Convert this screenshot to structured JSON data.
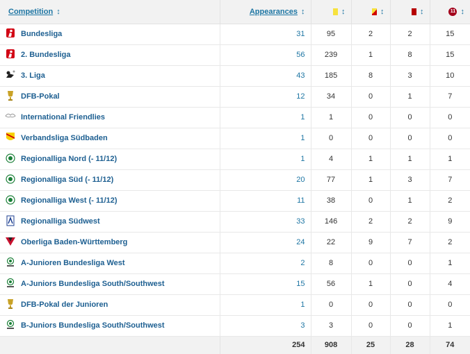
{
  "header": {
    "competition": "Competition",
    "appearances": "Appearances",
    "sort_glyph": "↕"
  },
  "icons": {
    "yellow_card": "yellow-card-icon",
    "yellow_red_card": "yellow-red-card-icon",
    "red_card": "red-card-icon",
    "starting_eleven": "starting-eleven-icon",
    "starting_eleven_text": "11"
  },
  "colors": {
    "link": "#1d75a3",
    "yellow": "#f7e23e",
    "red": "#b60000"
  },
  "rows": [
    {
      "name": "Bundesliga",
      "logo": "bundesliga-logo",
      "apps": "31",
      "c1": "95",
      "c2": "2",
      "c3": "2",
      "c4": "15"
    },
    {
      "name": "2. Bundesliga",
      "logo": "2-bundesliga-logo",
      "apps": "56",
      "c1": "239",
      "c2": "1",
      "c3": "8",
      "c4": "15"
    },
    {
      "name": "3. Liga",
      "logo": "3-liga-logo",
      "apps": "43",
      "c1": "185",
      "c2": "8",
      "c3": "3",
      "c4": "10"
    },
    {
      "name": "DFB-Pokal",
      "logo": "dfb-pokal-logo",
      "apps": "12",
      "c1": "34",
      "c2": "0",
      "c3": "1",
      "c4": "7"
    },
    {
      "name": "International Friendlies",
      "logo": "international-friendlies-logo",
      "apps": "1",
      "c1": "1",
      "c2": "0",
      "c3": "0",
      "c4": "0"
    },
    {
      "name": "Verbandsliga Südbaden",
      "logo": "verbandsliga-logo",
      "apps": "1",
      "c1": "0",
      "c2": "0",
      "c3": "0",
      "c4": "0"
    },
    {
      "name": "Regionalliga Nord (- 11/12)",
      "logo": "dfb-logo",
      "apps": "1",
      "c1": "4",
      "c2": "1",
      "c3": "1",
      "c4": "1"
    },
    {
      "name": "Regionalliga Süd (- 11/12)",
      "logo": "dfb-logo",
      "apps": "20",
      "c1": "77",
      "c2": "1",
      "c3": "3",
      "c4": "7"
    },
    {
      "name": "Regionalliga West (- 11/12)",
      "logo": "dfb-logo",
      "apps": "11",
      "c1": "38",
      "c2": "0",
      "c3": "1",
      "c4": "2"
    },
    {
      "name": "Regionalliga Südwest",
      "logo": "regionalliga-suedwest-logo",
      "apps": "33",
      "c1": "146",
      "c2": "2",
      "c3": "2",
      "c4": "9"
    },
    {
      "name": "Oberliga Baden-Württemberg",
      "logo": "oberliga-bw-logo",
      "apps": "24",
      "c1": "22",
      "c2": "9",
      "c3": "7",
      "c4": "2"
    },
    {
      "name": "A-Junioren Bundesliga West",
      "logo": "junioren-bundesliga-logo",
      "apps": "2",
      "c1": "8",
      "c2": "0",
      "c3": "0",
      "c4": "1"
    },
    {
      "name": "A-Juniors Bundesliga South/Southwest",
      "logo": "junioren-bundesliga-logo",
      "apps": "15",
      "c1": "56",
      "c2": "1",
      "c3": "0",
      "c4": "4"
    },
    {
      "name": "DFB-Pokal der Junioren",
      "logo": "dfb-pokal-logo",
      "apps": "1",
      "c1": "0",
      "c2": "0",
      "c3": "0",
      "c4": "0"
    },
    {
      "name": "B-Juniors Bundesliga South/Southwest",
      "logo": "junioren-bundesliga-logo",
      "apps": "3",
      "c1": "3",
      "c2": "0",
      "c3": "0",
      "c4": "1"
    }
  ],
  "totals": {
    "apps": "254",
    "c1": "908",
    "c2": "25",
    "c3": "28",
    "c4": "74"
  }
}
